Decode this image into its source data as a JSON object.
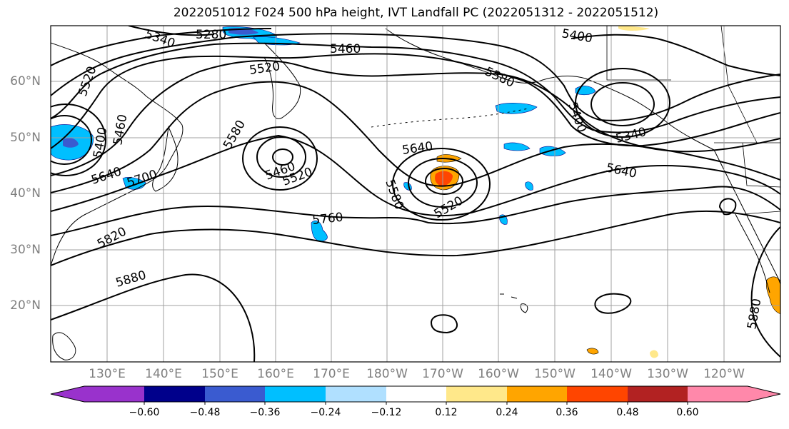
{
  "title": "2022051012 F024 500 hPa height, IVT Landfall PC (2022051312 - 2022051512)",
  "longitude_labels": [
    "130°E",
    "140°E",
    "150°E",
    "160°E",
    "170°E",
    "180°W",
    "170°W",
    "160°W",
    "150°W",
    "140°W",
    "130°W",
    "120°W"
  ],
  "latitude_labels": [
    "60°N",
    "50°N",
    "40°N",
    "30°N",
    "20°N"
  ],
  "contour_labels": [
    "5340",
    "5280",
    "5460",
    "5520",
    "5580",
    "5400",
    "5640",
    "5400",
    "5340",
    "5520",
    "5400",
    "5460",
    "5580",
    "5460",
    "5520",
    "5640",
    "5580",
    "5520",
    "5640",
    "5700",
    "5760",
    "5820",
    "5880",
    "5880"
  ],
  "colorbar": {
    "tick_labels": [
      "−0.60",
      "−0.48",
      "−0.36",
      "−0.24",
      "−0.12",
      "0.12",
      "0.24",
      "0.36",
      "0.48",
      "0.60"
    ],
    "colors": [
      "#9932cc",
      "#00008b",
      "#3a5bd0",
      "#00bfff",
      "#b0e0ff",
      "#ffffff",
      "#ffe88a",
      "#ffa500",
      "#ff4500",
      "#b22222",
      "#ff88aa"
    ]
  },
  "map_colors": {
    "contour": "#000000",
    "grid": "#a0a0a0",
    "coast": "#000000"
  }
}
